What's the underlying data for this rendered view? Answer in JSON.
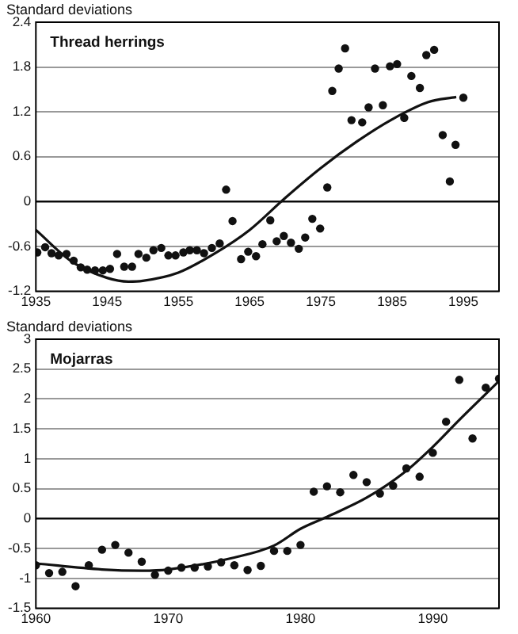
{
  "chart_data": [
    {
      "type": "scatter",
      "title": "Thread herrings",
      "ylabel": "Standard deviations",
      "xlim": [
        1935,
        2000
      ],
      "xticks": [
        1935,
        1945,
        1955,
        1965,
        1975,
        1985,
        1995
      ],
      "ylim": [
        -1.2,
        2.4
      ],
      "yticks": [
        -1.2,
        -0.6,
        0,
        0.6,
        1.2,
        1.8,
        2.4
      ],
      "grid": "y",
      "legend": false,
      "marker": "circle",
      "ref_lines": [
        {
          "axis": "y",
          "value": 0,
          "color": "#000000"
        }
      ],
      "series": [
        {
          "type": "scatter",
          "color": "#111111",
          "x": [
            1935.2,
            1936.3,
            1937.2,
            1938.2,
            1939.3,
            1940.3,
            1941.3,
            1942.2,
            1943.3,
            1944.4,
            1945.4,
            1946.4,
            1947.4,
            1948.5,
            1949.4,
            1950.5,
            1951.5,
            1952.6,
            1953.6,
            1954.6,
            1955.7,
            1956.6,
            1957.6,
            1958.6,
            1959.7,
            1960.8,
            1961.7,
            1962.6,
            1963.8,
            1964.8,
            1965.9,
            1966.8,
            1967.9,
            1968.8,
            1969.8,
            1970.8,
            1971.9,
            1972.8,
            1973.8,
            1974.9,
            1975.9,
            1976.6,
            1977.5,
            1978.4,
            1979.3,
            1980.8,
            1981.7,
            1982.6,
            1983.7,
            1984.7,
            1985.7,
            1986.7,
            1987.7,
            1988.9,
            1989.8,
            1990.9,
            1992.1,
            1993.1,
            1993.9,
            1995.0
          ],
          "values": [
            -0.68,
            -0.61,
            -0.69,
            -0.72,
            -0.7,
            -0.79,
            -0.88,
            -0.91,
            -0.92,
            -0.92,
            -0.9,
            -0.7,
            -0.87,
            -0.87,
            -0.7,
            -0.75,
            -0.65,
            -0.62,
            -0.72,
            -0.72,
            -0.68,
            -0.65,
            -0.65,
            -0.69,
            -0.62,
            -0.56,
            0.16,
            -0.26,
            -0.77,
            -0.67,
            -0.73,
            -0.57,
            -0.25,
            -0.53,
            -0.46,
            -0.55,
            -0.63,
            -0.48,
            -0.23,
            -0.36,
            0.19,
            1.48,
            1.78,
            2.05,
            1.09,
            1.06,
            1.26,
            1.78,
            1.29,
            1.81,
            1.84,
            1.12,
            1.68,
            1.52,
            1.96,
            2.03,
            0.89,
            0.27,
            0.76,
            1.39
          ]
        },
        {
          "type": "line",
          "color": "#111111",
          "marker": "none",
          "line_style": "solid",
          "x": [
            1935,
            1940,
            1945,
            1948,
            1950,
            1955,
            1960,
            1965,
            1970,
            1975,
            1980,
            1985,
            1990,
            1994
          ],
          "values": [
            -0.38,
            -0.8,
            -1.02,
            -1.07,
            -1.06,
            -0.95,
            -0.7,
            -0.38,
            0.05,
            0.45,
            0.8,
            1.1,
            1.33,
            1.4
          ]
        }
      ]
    },
    {
      "type": "scatter",
      "title": "Mojarras",
      "ylabel": "Standard deviations",
      "xlim": [
        1960,
        1995
      ],
      "xticks": [
        1960,
        1970,
        1980,
        1990
      ],
      "ylim": [
        -1.5,
        3
      ],
      "yticks": [
        -1.5,
        -1,
        -0.5,
        0,
        0.5,
        1,
        1.5,
        2,
        2.5,
        3
      ],
      "grid": "y",
      "legend": false,
      "marker": "circle",
      "ref_lines": [
        {
          "axis": "y",
          "value": 0,
          "color": "#000000"
        }
      ],
      "series": [
        {
          "type": "scatter",
          "color": "#111111",
          "x": [
            1960,
            1961,
            1962,
            1963,
            1964,
            1965,
            1966,
            1967,
            1968,
            1969,
            1970,
            1971,
            1972,
            1973,
            1974,
            1975,
            1976,
            1977,
            1978,
            1979,
            1980,
            1981,
            1982,
            1983,
            1984,
            1985,
            1986,
            1987,
            1988,
            1989,
            1990,
            1991,
            1992,
            1993,
            1994,
            1995
          ],
          "values": [
            -0.78,
            -0.91,
            -0.89,
            -1.13,
            -0.78,
            -0.52,
            -0.44,
            -0.57,
            -0.72,
            -0.94,
            -0.87,
            -0.82,
            -0.82,
            -0.8,
            -0.73,
            -0.78,
            -0.86,
            -0.79,
            -0.54,
            -0.54,
            -0.44,
            0.45,
            0.54,
            0.44,
            0.73,
            0.61,
            0.42,
            0.55,
            0.84,
            0.7,
            1.1,
            1.62,
            2.32,
            1.34,
            2.19,
            2.34
          ]
        },
        {
          "type": "line",
          "color": "#111111",
          "marker": "none",
          "line_style": "solid",
          "x": [
            1960,
            1965,
            1968,
            1970,
            1975,
            1978,
            1980,
            1982,
            1985,
            1988,
            1990,
            1992,
            1995
          ],
          "values": [
            -0.75,
            -0.85,
            -0.87,
            -0.85,
            -0.65,
            -0.45,
            -0.17,
            0.03,
            0.35,
            0.8,
            1.2,
            1.65,
            2.3
          ]
        }
      ]
    }
  ]
}
